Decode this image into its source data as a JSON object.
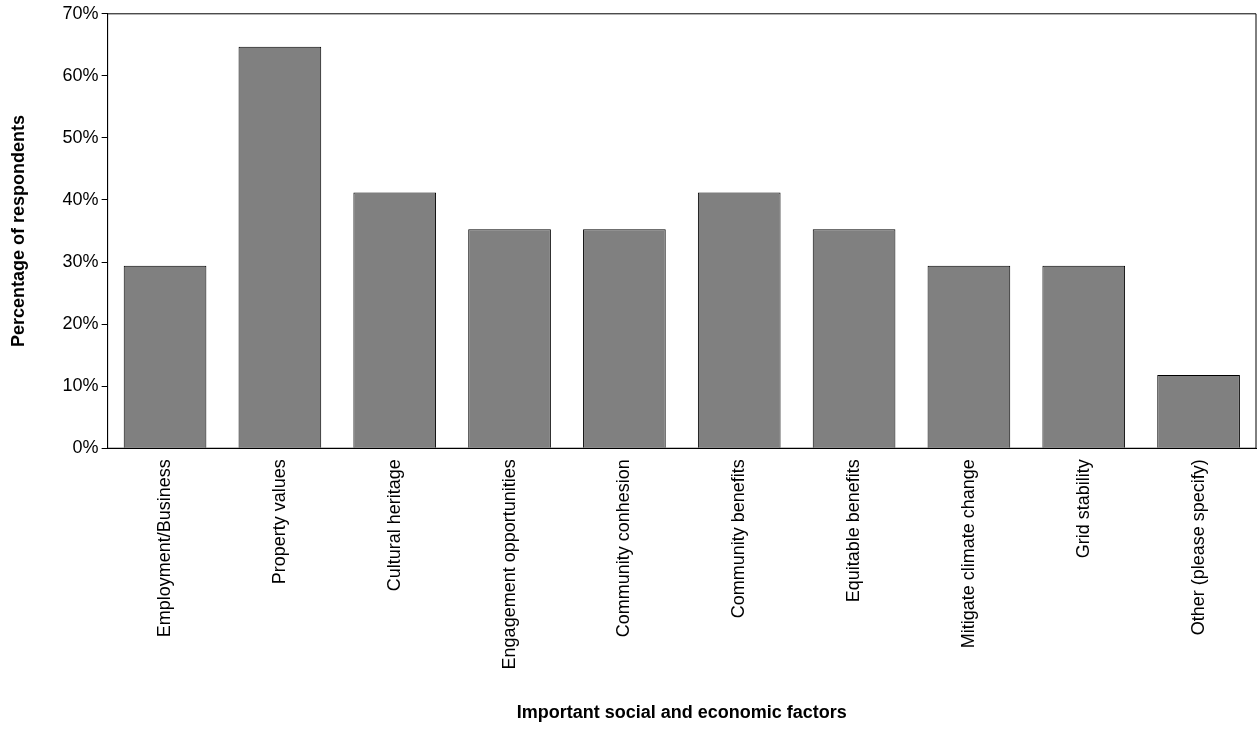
{
  "chart_data": {
    "type": "bar",
    "xlabel": "Important social and economic factors",
    "ylabel": "Percentage of respondents",
    "categories": [
      "Employment/Business",
      "Property values",
      "Cultural heritage",
      "Engagement opportunities",
      "Community conhesion",
      "Community benefits",
      "Equitable benefits",
      "Mitigate climate change",
      "Grid stability",
      "Other (please specify)"
    ],
    "values": [
      29.4,
      64.7,
      41.2,
      35.3,
      35.3,
      41.2,
      35.3,
      29.4,
      29.4,
      11.8
    ],
    "color": "#808080",
    "ylim": [
      0,
      70
    ],
    "yticks": [
      {
        "value": 0,
        "label": "0%"
      },
      {
        "value": 10,
        "label": "10%"
      },
      {
        "value": 20,
        "label": "20%"
      },
      {
        "value": 30,
        "label": "30%"
      },
      {
        "value": 40,
        "label": "40%"
      },
      {
        "value": 50,
        "label": "50%"
      },
      {
        "value": 60,
        "label": "60%"
      },
      {
        "value": 70,
        "label": "70%"
      }
    ],
    "grid": false,
    "legend": false
  }
}
